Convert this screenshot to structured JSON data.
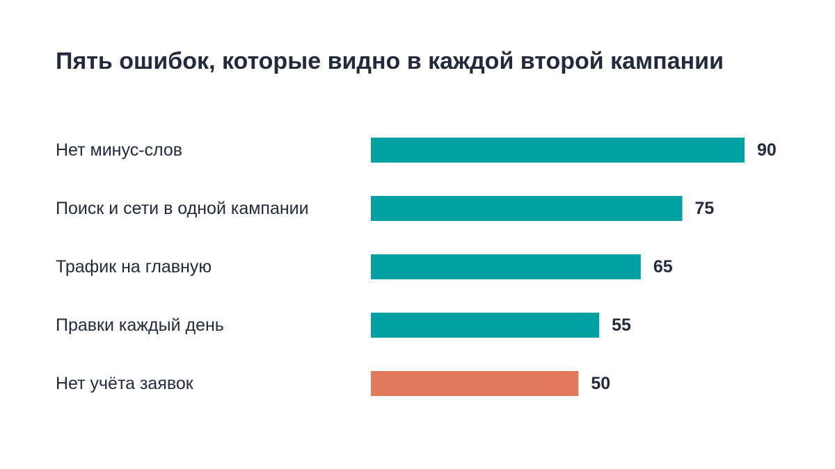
{
  "title": "Пять ошибок, которые видно в каждой второй кампании",
  "colors": {
    "primary": "#00a0a3",
    "highlight": "#e2785c",
    "text": "#232a3c",
    "background": "#ffffff"
  },
  "chart_data": {
    "type": "bar",
    "orientation": "horizontal",
    "title": "Пять ошибок, которые видно в каждой второй кампании",
    "xlabel": "",
    "ylabel": "",
    "xlim": [
      0,
      90
    ],
    "grid": false,
    "legend": "none",
    "categories": [
      "Нет минус-слов",
      "Поиск и сети в одной кампании",
      "Трафик на главную",
      "Правки каждый день",
      "Нет учёта заявок"
    ],
    "values": [
      90,
      75,
      65,
      55,
      50
    ],
    "value_labels": [
      "90",
      "75",
      "65",
      "55",
      "50"
    ],
    "bar_colors": [
      "#00a0a3",
      "#00a0a3",
      "#00a0a3",
      "#00a0a3",
      "#e2785c"
    ]
  }
}
